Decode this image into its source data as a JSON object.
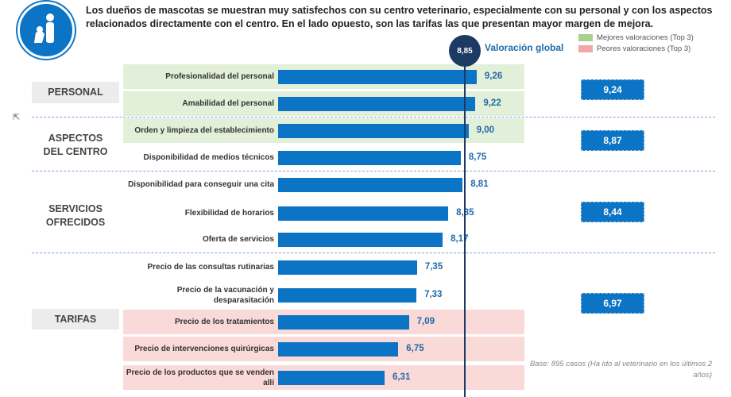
{
  "title": "Los dueños de mascotas se muestran muy satisfechos con su centro veterinario, especialmente con su personal y con los aspectos relacionados directamente con el centro. En el lado opuesto, son las tarifas las que presentan mayor margen de mejora.",
  "colors": {
    "bar": "#0c74c4",
    "best": "#e2efd9",
    "worst": "#fad9d9",
    "global_line": "#1c3a63"
  },
  "chart_data": {
    "type": "bar",
    "orientation": "horizontal",
    "categories": [
      "Profesionalidad del personal",
      "Amabilidad del personal",
      "Orden y limpieza del establecimiento",
      "Disponibilidad de medios técnicos",
      "Disponibilidad para conseguir una cita",
      "Flexibilidad de horarios",
      "Oferta de servicios",
      "Precio de las consultas rutinarias",
      "Precio de la vacunación y desparasitación",
      "Precio de los tratamientos",
      "Precio de intervenciones quirúrgicas",
      "Precio de los productos que se venden allí"
    ],
    "values": [
      9.26,
      9.22,
      9.0,
      8.75,
      8.81,
      8.35,
      8.17,
      7.35,
      7.33,
      7.09,
      6.75,
      6.31
    ],
    "value_labels": [
      "9,26",
      "9,22",
      "9,00",
      "8,75",
      "8,81",
      "8,35",
      "8,17",
      "7,35",
      "7,33",
      "7,09",
      "6,75",
      "6,31"
    ],
    "highlight": [
      "best",
      "best",
      "best",
      "",
      "",
      "",
      "",
      "",
      "",
      "worst",
      "worst",
      "worst"
    ],
    "reference_line": {
      "value": 8.85,
      "label_value": "8,85",
      "label": "Valoración global"
    },
    "legend": [
      {
        "label": "Mejores valoraciones (Top 3)",
        "color": "#a9d18e"
      },
      {
        "label": "Peores valoraciones (Top 3)",
        "color": "#f4a6a6"
      }
    ],
    "groups": [
      {
        "label": "PERSONAL",
        "average": "9,24"
      },
      {
        "label": "ASPECTOS DEL CENTRO",
        "average": "8,87"
      },
      {
        "label": "SERVICIOS OFRECIDOS",
        "average": "8,44"
      },
      {
        "label": "TARIFAS",
        "average": "6,97"
      }
    ],
    "note": "Base: 895 casos (Ha ido al veterinario en los últimos 2 años)"
  }
}
